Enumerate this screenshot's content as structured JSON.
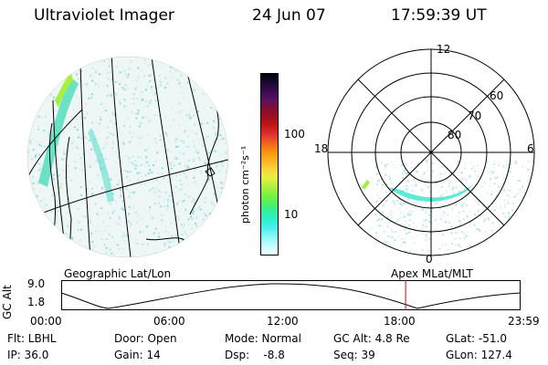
{
  "header": {
    "instrument": "Ultraviolet Imager",
    "date": "24 Jun 07",
    "time": "17:59:39 UT"
  },
  "colorbar": {
    "unit_label": "photon cm⁻²s⁻¹",
    "ticks": [
      "100",
      "10"
    ],
    "colors": [
      "#000000",
      "#1a0830",
      "#3a0c50",
      "#5a1060",
      "#801030",
      "#a01020",
      "#c01818",
      "#e03030",
      "#f06020",
      "#f89010",
      "#fcb020",
      "#fcd040",
      "#e8f040",
      "#b8f040",
      "#80f040",
      "#50f060",
      "#30f0a0",
      "#30f0d0",
      "#50f0f0",
      "#90f8f8",
      "#c8fcfc",
      "#f0ffff"
    ]
  },
  "left_panel": {
    "label": "Geographic Lat/Lon"
  },
  "right_panel": {
    "label": "Apex MLat/MLT",
    "mlt_labels": {
      "top": "12",
      "left": "18",
      "right": "6",
      "bottom": "0"
    },
    "lat_labels": [
      "60",
      "70",
      "80"
    ]
  },
  "timeline": {
    "ylabel": "GC Alt",
    "y_ticks": [
      "9.0",
      "1.8"
    ],
    "x_ticks": [
      "00:00",
      "06:00",
      "12:00",
      "18:00",
      "23:59"
    ],
    "current_time_fraction": 0.7497,
    "marker_color": "#dd0000"
  },
  "status": {
    "row1": {
      "flt": "Flt: LBHL",
      "door": "Door: Open",
      "mode": "Mode: Normal",
      "gc_alt": "GC Alt: 4.8 Re",
      "glat": "GLat: -51.0"
    },
    "row2": {
      "ip": "IP: 36.0",
      "gain": "Gain: 14",
      "dsp": "Dsp:    -8.8",
      "seq": "Seq: 39",
      "glon": "GLon: 127.4"
    }
  }
}
